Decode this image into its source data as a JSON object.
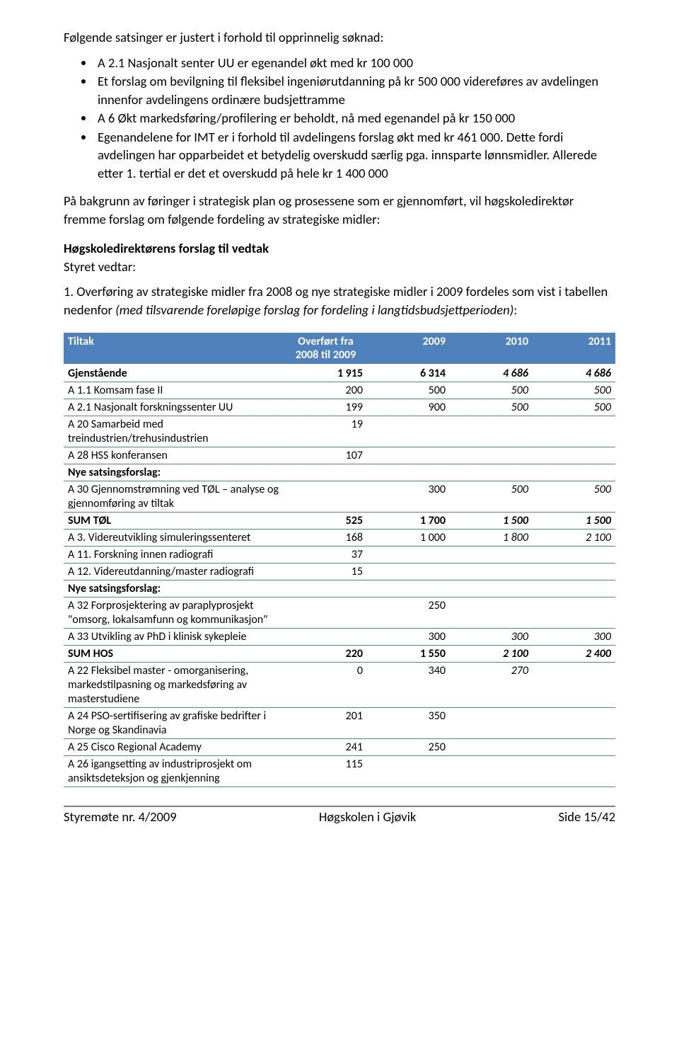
{
  "intro": "Følgende satsinger er justert i forhold til opprinnelig søknad:",
  "bullets": [
    "A 2.1 Nasjonalt senter UU er egenandel økt med kr 100 000",
    "Et forslag om bevilgning til fleksibel ingeniørutdanning på kr 500 000 videreføres av avdelingen innenfor avdelingens ordinære budsjettramme",
    "A 6 Økt markedsføring/profilering er beholdt, nå med egenandel på kr 150 000",
    "Egenandelene for IMT er i forhold til avdelingens forslag økt med kr 461 000. Dette fordi avdelingen har opparbeidet et betydelig overskudd særlig pga. innsparte lønnsmidler. Allerede etter 1. tertial er det et overskudd på hele kr 1 400 000"
  ],
  "para2": "På bakgrunn av føringer i strategisk plan og prosessene som er gjennomført, vil høgskoledirektør fremme forslag om følgende fordeling av strategiske midler:",
  "heading_bold": "Høgskoledirektørens forslag til vedtak",
  "heading_sub": "Styret vedtar:",
  "para3_a": "1. Overføring av strategiske midler fra 2008 og nye strategiske midler i 2009 fordeles som vist i tabellen nedenfor ",
  "para3_b": "(med tilsvarende foreløpige forslag for fordeling i langtidsbudsjettperioden)",
  "para3_c": ":",
  "table": {
    "headers": {
      "c0": "Tiltak",
      "c1a": "Overført fra",
      "c1b": "2008 til 2009",
      "c2": "2009",
      "c3": "2010",
      "c4": "2011"
    },
    "rows": [
      {
        "label": "Gjenstående",
        "c1": "1 915",
        "c2": "6 314",
        "c3": "4 686",
        "c4": "4 686",
        "bold": true,
        "italic_c34": true
      },
      {
        "label": "A 1.1 Komsam fase II",
        "c1": "200",
        "c2": "500",
        "c3": "500",
        "c4": "500",
        "italic_c34": true
      },
      {
        "label": "A 2.1 Nasjonalt forskningssenter UU",
        "c1": "199",
        "c2": "900",
        "c3": "500",
        "c4": "500",
        "italic_c34": true
      },
      {
        "label": "A 20 Samarbeid med treindustrien/trehusindustrien",
        "c1": "19",
        "c2": "",
        "c3": "",
        "c4": ""
      },
      {
        "label": "A 28 HSS konferansen",
        "c1": "107",
        "c2": "",
        "c3": "",
        "c4": ""
      },
      {
        "label": "Nye satsingsforslag:",
        "c1": "",
        "c2": "",
        "c3": "",
        "c4": "",
        "bold": true
      },
      {
        "label": "A 30 Gjennomstrømning ved TØL – analyse og gjennomføring av tiltak",
        "c1": "",
        "c2": "300",
        "c3": "500",
        "c4": "500",
        "italic_c34": true
      },
      {
        "label": "SUM TØL",
        "c1": "525",
        "c2": "1 700",
        "c3": "1 500",
        "c4": "1 500",
        "bold": true,
        "italic_c34": true,
        "sum": true
      },
      {
        "label": "A 3. Videreutvikling simuleringssenteret",
        "c1": "168",
        "c2": "1 000",
        "c3": "1 800",
        "c4": "2 100",
        "italic_c34": true
      },
      {
        "label": "A 11. Forskning innen radiografi",
        "c1": "37",
        "c2": "",
        "c3": "",
        "c4": ""
      },
      {
        "label": "A 12. Videreutdanning/master radiografi",
        "c1": "15",
        "c2": "",
        "c3": "",
        "c4": ""
      },
      {
        "label": "Nye satsingsforslag:",
        "c1": "",
        "c2": "",
        "c3": "",
        "c4": "",
        "bold": true
      },
      {
        "label": "A 32 Forprosjektering av paraplyprosjekt \"omsorg, lokalsamfunn og kommunikasjon\"",
        "c1": "",
        "c2": "250",
        "c3": "",
        "c4": ""
      },
      {
        "label": "A 33 Utvikling av PhD i klinisk sykepleie",
        "c1": "",
        "c2": "300",
        "c3": "300",
        "c4": "300",
        "italic_c34": true
      },
      {
        "label": "SUM HOS",
        "c1": "220",
        "c2": "1 550",
        "c3": "2 100",
        "c4": "2 400",
        "bold": true,
        "italic_c34": true,
        "sum": true
      },
      {
        "label": "A 22 Fleksibel master - omorganisering, markedstilpasning og markedsføring av masterstudiene",
        "c1": "0",
        "c2": "340",
        "c3": "270",
        "c4": "",
        "italic_c34": true
      },
      {
        "label": "A 24 PSO-sertifisering av grafiske bedrifter i Norge og Skandinavia",
        "c1": "201",
        "c2": "350",
        "c3": "",
        "c4": ""
      },
      {
        "label": "A 25 Cisco Regional Academy",
        "c1": "241",
        "c2": "250",
        "c3": "",
        "c4": ""
      },
      {
        "label": "A 26 igangsetting av industriprosjekt om ansiktsdeteksjon og gjenkjenning",
        "c1": "115",
        "c2": "",
        "c3": "",
        "c4": ""
      }
    ]
  },
  "footer": {
    "left": "Styremøte nr. 4/2009",
    "center": "Høgskolen i Gjøvik",
    "right": "Side 15/42"
  }
}
